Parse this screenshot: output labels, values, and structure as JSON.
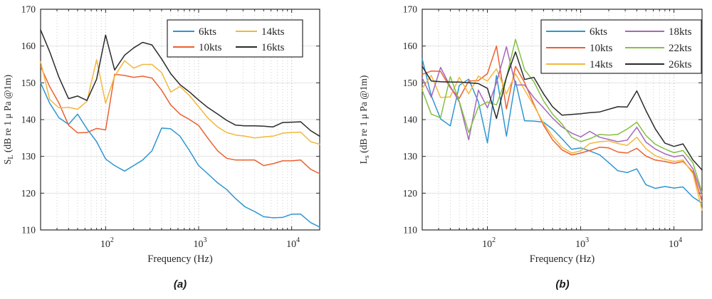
{
  "figure": {
    "background": "#ffffff"
  },
  "captions": {
    "a": "(a)",
    "b": "(b)"
  },
  "colors": {
    "blue": "#2E96D2",
    "orange": "#EC6030",
    "yellow": "#F2B83C",
    "purple": "#A668BC",
    "green": "#84C142",
    "black": "#2b2b2b",
    "grid_major_h": "#e3e3e3",
    "grid_minor_v": "#cfcfcf",
    "grid_major_v": "#b5b5b5",
    "axis_box": "#2b2b2b",
    "tick_text": "#262626"
  },
  "chart_data": [
    {
      "id": "a",
      "type": "line",
      "title": "",
      "xlabel": "Frequency (Hz)",
      "ylabel_main": "S",
      "ylabel_sub": "L",
      "ylabel_rest": " (dB re 1 μ Pa @1m)",
      "x_scale": "log",
      "xlim": [
        20,
        20000
      ],
      "ylim": [
        110,
        170
      ],
      "yticks": [
        110,
        120,
        130,
        140,
        150,
        160,
        170
      ],
      "xticks": [
        100,
        1000,
        10000
      ],
      "grid": true,
      "legend_position": "upper right",
      "x": [
        20,
        25,
        31.5,
        40,
        50,
        63,
        80,
        100,
        125,
        160,
        200,
        250,
        315,
        400,
        500,
        630,
        800,
        1000,
        1250,
        1600,
        2000,
        2500,
        3150,
        4000,
        5000,
        6300,
        8000,
        10000,
        12500,
        16000,
        20000
      ],
      "series": [
        {
          "name": "6kts",
          "color_key": "blue",
          "values": [
            150,
            144.5,
            140.5,
            138.7,
            141.5,
            137.5,
            134,
            129.3,
            127.5,
            126,
            127.5,
            129,
            131.5,
            137.7,
            137.5,
            135.5,
            131.5,
            127.5,
            125.3,
            122.8,
            121,
            118.5,
            116.3,
            115,
            113.6,
            113.3,
            113.4,
            114.3,
            114.3,
            112,
            110.8
          ]
        },
        {
          "name": "10kts",
          "color_key": "orange",
          "values": [
            154.5,
            149,
            144.5,
            138.5,
            136.4,
            136.5,
            137.6,
            137.2,
            152.3,
            152,
            151.5,
            151.8,
            151.3,
            148,
            144,
            141.5,
            140,
            138.4,
            135,
            131.5,
            129.5,
            129,
            129,
            129,
            127.5,
            128,
            128.8,
            128.8,
            129,
            126.5,
            125.3
          ]
        },
        {
          "name": "14kts",
          "color_key": "yellow",
          "values": [
            155.8,
            145.5,
            143.2,
            143.3,
            142.8,
            145,
            156.3,
            144.5,
            151.8,
            156,
            154,
            155,
            155,
            152.8,
            147.5,
            149,
            146.5,
            143.5,
            140.5,
            138,
            136.5,
            135.8,
            135.5,
            135,
            135.3,
            135.5,
            136.3,
            136.5,
            136.6,
            134,
            133.3
          ]
        },
        {
          "name": "16kts",
          "color_key": "black",
          "values": [
            164.4,
            158.5,
            151.5,
            145.7,
            146.4,
            145.2,
            151,
            163,
            153.5,
            157.5,
            159.5,
            161,
            160.3,
            156.5,
            152.5,
            149.5,
            147.5,
            145.3,
            143.3,
            141.5,
            139.8,
            138.5,
            138.3,
            138.3,
            138.2,
            138,
            139.2,
            139.3,
            139.4,
            137,
            135.5
          ]
        }
      ]
    },
    {
      "id": "b",
      "type": "line",
      "title": "",
      "xlabel": "Frequency (Hz)",
      "ylabel_main": "L",
      "ylabel_sub": "s",
      "ylabel_rest": " (dB re 1 μ Pa @1m)",
      "x_scale": "log",
      "xlim": [
        20,
        20000
      ],
      "ylim": [
        110,
        170
      ],
      "yticks": [
        110,
        120,
        130,
        140,
        150,
        160,
        170
      ],
      "xticks": [
        100,
        1000,
        10000
      ],
      "grid": true,
      "legend_position": "upper right",
      "x": [
        20,
        25,
        31.5,
        40,
        50,
        63,
        80,
        100,
        125,
        160,
        200,
        250,
        315,
        400,
        500,
        630,
        800,
        1000,
        1250,
        1600,
        2000,
        2500,
        3150,
        4000,
        5000,
        6300,
        8000,
        10000,
        12500,
        16000,
        20000
      ],
      "series": [
        {
          "name": "6kts",
          "color_key": "blue",
          "values": [
            156.5,
            146.5,
            140.2,
            138.3,
            149.3,
            151,
            144.8,
            133.7,
            152,
            135.5,
            150.5,
            139.7,
            139.6,
            139.3,
            137.4,
            134.8,
            131.9,
            132.3,
            131.5,
            130.4,
            128.3,
            126.1,
            125.6,
            126.6,
            122.3,
            121.3,
            121.8,
            121.4,
            121.7,
            118.9,
            117.3
          ]
        },
        {
          "name": "10kts",
          "color_key": "orange",
          "values": [
            152.3,
            153.2,
            153.1,
            148.7,
            145.8,
            150.5,
            150.6,
            152.5,
            160,
            142.9,
            154.5,
            150.1,
            144.2,
            138.5,
            134.5,
            131.8,
            130.4,
            130.9,
            131.6,
            132.5,
            132.3,
            131.2,
            130.9,
            132.2,
            130.1,
            129,
            128.6,
            128.1,
            128.6,
            125.8,
            117.7
          ]
        },
        {
          "name": "14kts",
          "color_key": "yellow",
          "values": [
            148.5,
            152,
            146,
            146.2,
            151.5,
            147,
            151.8,
            150.5,
            153.8,
            147,
            152.5,
            148.1,
            143.8,
            139,
            135.5,
            132.5,
            130.9,
            131.5,
            133.5,
            134,
            134.2,
            133.5,
            133,
            135.2,
            132.1,
            130.2,
            129.2,
            128.6,
            129,
            125.3,
            115.4
          ]
        },
        {
          "name": "18kts",
          "color_key": "purple",
          "values": [
            151.3,
            146.1,
            154.2,
            149,
            144.8,
            134.5,
            148,
            143.2,
            150,
            159.8,
            149.4,
            149.4,
            146,
            143.2,
            140.4,
            138,
            136.3,
            135.3,
            136.8,
            135.2,
            134.6,
            134,
            134.4,
            137.9,
            133.9,
            132,
            130.7,
            129.9,
            130.3,
            126.6,
            119.5
          ]
        },
        {
          "name": "22kts",
          "color_key": "green",
          "values": [
            148,
            141.5,
            140.5,
            151.7,
            145,
            136.5,
            143.5,
            144.8,
            144,
            151.5,
            161.8,
            153.6,
            150.3,
            145.1,
            141.5,
            138.8,
            135.2,
            134,
            134.8,
            136,
            135.8,
            136,
            137.4,
            139.3,
            135.7,
            133.3,
            132,
            131,
            131.6,
            128.2,
            120.2
          ]
        },
        {
          "name": "26kts",
          "color_key": "black",
          "values": [
            154.5,
            150.5,
            150.3,
            150.2,
            150.2,
            150,
            149.8,
            148.5,
            140.3,
            151.5,
            158.4,
            150.9,
            151.5,
            147,
            143.5,
            141.2,
            141.4,
            141.6,
            141.9,
            142.1,
            142.8,
            143.5,
            143.4,
            147.8,
            142.5,
            137.5,
            133.6,
            132.7,
            133.4,
            129,
            126.3
          ]
        }
      ]
    }
  ]
}
